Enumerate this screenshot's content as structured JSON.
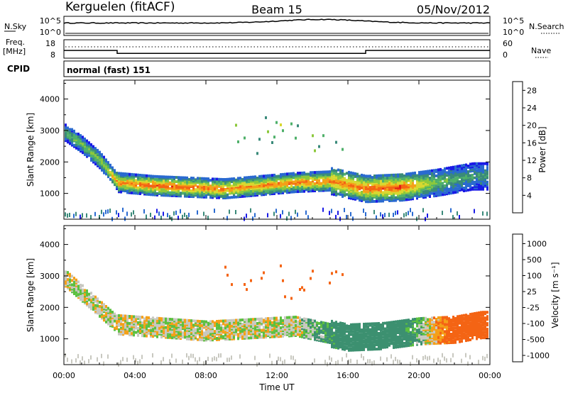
{
  "header": {
    "station": "Kerguelen (fitACF)",
    "beam": "Beam 15",
    "date": "05/Nov/2012"
  },
  "noise_panel": {
    "left_label": "N.Sky",
    "right_label": "N.Search",
    "left_ticks": [
      "10^5",
      "10^0"
    ],
    "right_ticks": [
      "10^5",
      "10^0"
    ]
  },
  "freq_panel": {
    "left_label_line1": "Freq.",
    "left_label_line2": "[MHz]",
    "left_ticks": [
      "18",
      "8"
    ],
    "right_label": "Nave",
    "right_ticks": [
      "60",
      "0"
    ],
    "freq_steps": [
      {
        "start_hour": 0.0,
        "end_hour": 3.0,
        "freq_mhz": 12.2
      },
      {
        "start_hour": 3.0,
        "end_hour": 17.0,
        "freq_mhz": 10.6
      },
      {
        "start_hour": 17.0,
        "end_hour": 24.0,
        "freq_mhz": 12.2
      }
    ]
  },
  "cpid": {
    "label": "CPID",
    "value": "normal (fast) 151"
  },
  "chart_data": [
    {
      "type": "heatmap",
      "parameter": "power",
      "ylabel": "Slant Range [km]",
      "xlabel": "",
      "x_ticks": [
        "00:00",
        "04:00",
        "08:00",
        "12:00",
        "16:00",
        "20:00",
        "00:00"
      ],
      "xlim_hours": [
        0,
        24
      ],
      "y_ticks": [
        1000,
        2000,
        3000,
        4000
      ],
      "ylim_km": [
        180,
        4600
      ],
      "colorbar": {
        "label": "Power [dB]",
        "ticks": [
          4,
          8,
          12,
          16,
          20,
          24,
          28
        ],
        "range": [
          0,
          30
        ],
        "colors": [
          "#1a1ae6",
          "#2a6ad0",
          "#3a8a7a",
          "#4fb06a",
          "#8cc83c",
          "#d8d830",
          "#f4a018",
          "#f46414",
          "#e41c14"
        ]
      },
      "scatter_band": [
        {
          "hour": 0.0,
          "range_km": 3000,
          "power_db": 12
        },
        {
          "hour": 1.0,
          "range_km": 2600,
          "power_db": 14
        },
        {
          "hour": 2.0,
          "range_km": 2100,
          "power_db": 16
        },
        {
          "hour": 3.0,
          "range_km": 1400,
          "power_db": 24
        },
        {
          "hour": 5.0,
          "range_km": 1300,
          "power_db": 27
        },
        {
          "hour": 7.0,
          "range_km": 1250,
          "power_db": 26
        },
        {
          "hour": 9.0,
          "range_km": 1200,
          "power_db": 25
        },
        {
          "hour": 11.0,
          "range_km": 1300,
          "power_db": 24
        },
        {
          "hour": 13.0,
          "range_km": 1400,
          "power_db": 25
        },
        {
          "hour": 15.0,
          "range_km": 1450,
          "power_db": 24
        },
        {
          "hour": 17.0,
          "range_km": 1200,
          "power_db": 26
        },
        {
          "hour": 19.0,
          "range_km": 1250,
          "power_db": 27
        },
        {
          "hour": 21.0,
          "range_km": 1400,
          "power_db": 14
        },
        {
          "hour": 23.0,
          "range_km": 1600,
          "power_db": 10
        }
      ]
    },
    {
      "type": "heatmap",
      "parameter": "velocity",
      "ylabel": "Slant Range [km]",
      "xlabel": "Time UT",
      "x_ticks": [
        "00:00",
        "04:00",
        "08:00",
        "12:00",
        "16:00",
        "20:00",
        "00:00"
      ],
      "xlim_hours": [
        0,
        24
      ],
      "y_ticks": [
        1000,
        2000,
        3000,
        4000
      ],
      "ylim_km": [
        180,
        4600
      ],
      "colorbar": {
        "label": "Velocity [m s⁻¹]",
        "ticks": [
          "1000",
          "500",
          "100",
          "25",
          "-25",
          "-100",
          "-500",
          "-1000"
        ],
        "colors": [
          "#1c3cb4",
          "#2a6ab4",
          "#3c9070",
          "#5cc040",
          "#c8c8c0",
          "#f4a018",
          "#f46414",
          "#e41c14"
        ]
      },
      "scatter_band": [
        {
          "hour": 0.0,
          "range_km": 3000,
          "velocity_ms": 0
        },
        {
          "hour": 3.0,
          "range_km": 1500,
          "velocity_ms": 0
        },
        {
          "hour": 8.0,
          "range_km": 1300,
          "velocity_ms": 0
        },
        {
          "hour": 13.0,
          "range_km": 1450,
          "velocity_ms": 0
        },
        {
          "hour": 16.0,
          "range_km": 1100,
          "velocity_ms": 150
        },
        {
          "hour": 18.0,
          "range_km": 1150,
          "velocity_ms": 200
        },
        {
          "hour": 20.0,
          "range_km": 1300,
          "velocity_ms": 50
        },
        {
          "hour": 22.0,
          "range_km": 1350,
          "velocity_ms": -200
        },
        {
          "hour": 23.5,
          "range_km": 1500,
          "velocity_ms": -300
        }
      ]
    }
  ]
}
